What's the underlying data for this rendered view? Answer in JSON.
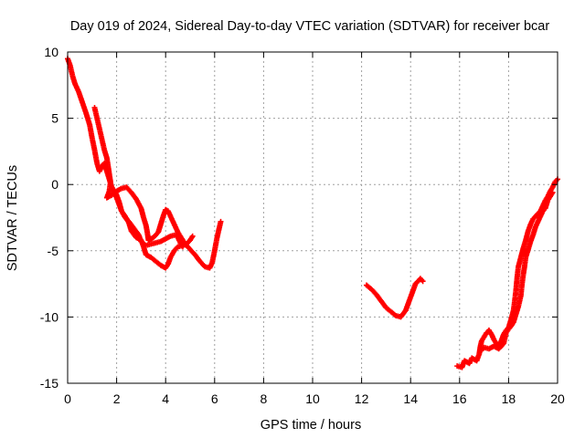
{
  "chart_data": {
    "type": "scatter",
    "title": "Day 019 of 2024, Sidereal Day-to-day VTEC variation (SDTVAR) for receiver bcar",
    "xlabel": "GPS time / hours",
    "ylabel": "SDTVAR / TECUs",
    "xlim": [
      0,
      20
    ],
    "ylim": [
      -15,
      10
    ],
    "xticks": [
      0,
      2,
      4,
      6,
      8,
      10,
      12,
      14,
      16,
      18,
      20
    ],
    "yticks": [
      10,
      5,
      0,
      -5,
      -10,
      -15
    ],
    "grid": true,
    "marker": "+",
    "color": "#ff0000",
    "series": [
      {
        "name": "segment-1",
        "points": [
          [
            0.0,
            9.5
          ],
          [
            0.1,
            9.0
          ],
          [
            0.2,
            8.2
          ],
          [
            0.3,
            7.6
          ],
          [
            0.45,
            7.0
          ],
          [
            0.6,
            6.2
          ],
          [
            0.75,
            5.4
          ],
          [
            0.9,
            4.5
          ],
          [
            1.0,
            3.5
          ],
          [
            1.1,
            2.6
          ],
          [
            1.2,
            1.6
          ],
          [
            1.3,
            1.0
          ],
          [
            1.4,
            1.4
          ],
          [
            1.5,
            1.6
          ],
          [
            1.6,
            1.0
          ],
          [
            1.7,
            0.4
          ],
          [
            1.8,
            -0.2
          ],
          [
            1.9,
            -0.6
          ],
          [
            2.0,
            -1.0
          ],
          [
            2.1,
            -1.5
          ],
          [
            2.2,
            -2.0
          ],
          [
            2.35,
            -2.4
          ],
          [
            2.5,
            -2.9
          ],
          [
            2.6,
            -3.5
          ],
          [
            2.8,
            -4.0
          ],
          [
            3.0,
            -4.2
          ],
          [
            3.1,
            -4.7
          ],
          [
            3.2,
            -5.3
          ],
          [
            3.4,
            -5.5
          ],
          [
            3.6,
            -5.8
          ],
          [
            3.8,
            -6.1
          ],
          [
            4.0,
            -6.3
          ],
          [
            4.1,
            -6.0
          ],
          [
            4.2,
            -5.5
          ],
          [
            4.35,
            -5.0
          ],
          [
            4.5,
            -4.7
          ],
          [
            4.7,
            -4.6
          ],
          [
            4.85,
            -4.5
          ],
          [
            5.0,
            -4.2
          ],
          [
            5.1,
            -3.9
          ]
        ]
      },
      {
        "name": "segment-2",
        "points": [
          [
            1.1,
            5.8
          ],
          [
            1.2,
            5.0
          ],
          [
            1.3,
            4.2
          ],
          [
            1.4,
            3.4
          ],
          [
            1.5,
            2.6
          ],
          [
            1.6,
            2.0
          ],
          [
            1.65,
            1.4
          ],
          [
            1.7,
            0.8
          ],
          [
            1.75,
            0.2
          ],
          [
            1.7,
            -0.5
          ],
          [
            1.6,
            -1.0
          ],
          [
            1.8,
            -0.8
          ],
          [
            2.0,
            -0.5
          ],
          [
            2.2,
            -0.3
          ],
          [
            2.4,
            -0.2
          ],
          [
            2.6,
            -0.6
          ],
          [
            2.8,
            -1.1
          ],
          [
            3.0,
            -1.8
          ],
          [
            3.1,
            -2.5
          ],
          [
            3.2,
            -3.1
          ],
          [
            3.25,
            -3.6
          ],
          [
            3.3,
            -4.2
          ],
          [
            3.5,
            -4.0
          ],
          [
            3.7,
            -3.6
          ],
          [
            3.8,
            -3.0
          ],
          [
            3.9,
            -2.4
          ],
          [
            4.0,
            -1.9
          ],
          [
            4.1,
            -2.0
          ],
          [
            4.2,
            -2.4
          ],
          [
            4.35,
            -3.0
          ],
          [
            4.5,
            -3.6
          ],
          [
            4.6,
            -3.9
          ],
          [
            4.8,
            -4.5
          ],
          [
            5.0,
            -4.9
          ],
          [
            5.2,
            -5.3
          ],
          [
            5.4,
            -5.8
          ],
          [
            5.6,
            -6.2
          ],
          [
            5.8,
            -6.3
          ],
          [
            5.9,
            -5.9
          ],
          [
            6.0,
            -5.0
          ],
          [
            6.1,
            -4.0
          ],
          [
            6.25,
            -2.8
          ]
        ]
      },
      {
        "name": "segment-3",
        "points": [
          [
            1.9,
            -0.4
          ],
          [
            2.0,
            -0.8
          ],
          [
            2.1,
            -1.3
          ],
          [
            2.2,
            -2.0
          ],
          [
            2.35,
            -2.5
          ],
          [
            2.5,
            -2.8
          ],
          [
            2.7,
            -3.3
          ],
          [
            2.9,
            -3.8
          ],
          [
            3.0,
            -4.3
          ],
          [
            3.2,
            -4.6
          ],
          [
            3.4,
            -4.5
          ],
          [
            3.6,
            -4.4
          ],
          [
            3.8,
            -4.3
          ],
          [
            4.0,
            -4.1
          ],
          [
            4.2,
            -3.9
          ],
          [
            4.4,
            -3.8
          ],
          [
            4.5,
            -4.0
          ],
          [
            4.6,
            -4.4
          ],
          [
            4.7,
            -4.7
          ]
        ]
      },
      {
        "name": "segment-4",
        "points": [
          [
            12.2,
            -7.6
          ],
          [
            12.4,
            -7.9
          ],
          [
            12.6,
            -8.3
          ],
          [
            12.8,
            -8.8
          ],
          [
            13.0,
            -9.3
          ],
          [
            13.2,
            -9.6
          ],
          [
            13.4,
            -9.9
          ],
          [
            13.6,
            -10.0
          ],
          [
            13.8,
            -9.5
          ],
          [
            14.0,
            -8.5
          ],
          [
            14.2,
            -7.5
          ],
          [
            14.4,
            -7.1
          ],
          [
            14.5,
            -7.3
          ]
        ]
      },
      {
        "name": "segment-5",
        "points": [
          [
            15.9,
            -13.7
          ],
          [
            16.1,
            -13.8
          ],
          [
            16.2,
            -13.3
          ],
          [
            16.4,
            -13.5
          ],
          [
            16.5,
            -13.1
          ],
          [
            16.7,
            -13.3
          ],
          [
            16.8,
            -12.8
          ],
          [
            16.85,
            -12.2
          ],
          [
            16.9,
            -11.8
          ],
          [
            17.0,
            -11.5
          ],
          [
            17.1,
            -11.2
          ],
          [
            17.2,
            -11.0
          ],
          [
            17.3,
            -11.3
          ],
          [
            17.4,
            -11.7
          ],
          [
            17.5,
            -12.0
          ],
          [
            17.6,
            -12.2
          ],
          [
            17.7,
            -11.8
          ],
          [
            17.8,
            -11.3
          ],
          [
            17.9,
            -11.0
          ],
          [
            18.0,
            -10.8
          ],
          [
            18.1,
            -10.2
          ],
          [
            18.2,
            -9.5
          ],
          [
            18.25,
            -8.8
          ],
          [
            18.3,
            -8.0
          ],
          [
            18.35,
            -7.0
          ],
          [
            18.4,
            -6.2
          ],
          [
            18.5,
            -5.5
          ],
          [
            18.6,
            -4.8
          ],
          [
            18.7,
            -4.2
          ],
          [
            18.8,
            -3.5
          ],
          [
            18.9,
            -3.0
          ],
          [
            19.0,
            -2.6
          ],
          [
            19.1,
            -2.4
          ],
          [
            19.2,
            -2.2
          ],
          [
            19.3,
            -2.0
          ],
          [
            19.4,
            -1.6
          ],
          [
            19.5,
            -1.2
          ],
          [
            19.6,
            -0.9
          ],
          [
            19.7,
            -0.5
          ],
          [
            19.8,
            -0.2
          ],
          [
            19.9,
            0.2
          ],
          [
            20.0,
            0.4
          ]
        ]
      },
      {
        "name": "segment-6",
        "points": [
          [
            16.9,
            -12.5
          ],
          [
            17.0,
            -12.3
          ],
          [
            17.2,
            -12.4
          ],
          [
            17.4,
            -12.2
          ],
          [
            17.6,
            -12.4
          ],
          [
            17.8,
            -12.0
          ],
          [
            17.9,
            -11.2
          ],
          [
            18.0,
            -10.9
          ],
          [
            18.1,
            -10.7
          ],
          [
            18.2,
            -10.4
          ],
          [
            18.3,
            -9.8
          ],
          [
            18.4,
            -9.2
          ],
          [
            18.5,
            -8.4
          ],
          [
            18.55,
            -7.5
          ],
          [
            18.6,
            -6.8
          ],
          [
            18.65,
            -6.2
          ],
          [
            18.7,
            -5.5
          ],
          [
            18.8,
            -4.9
          ],
          [
            18.9,
            -4.3
          ],
          [
            19.0,
            -3.8
          ],
          [
            19.1,
            -3.2
          ],
          [
            19.2,
            -2.8
          ],
          [
            19.3,
            -2.4
          ],
          [
            19.4,
            -2.0
          ],
          [
            19.5,
            -1.8
          ],
          [
            19.6,
            -1.2
          ],
          [
            19.7,
            -0.9
          ],
          [
            19.8,
            -0.6
          ]
        ]
      }
    ]
  }
}
